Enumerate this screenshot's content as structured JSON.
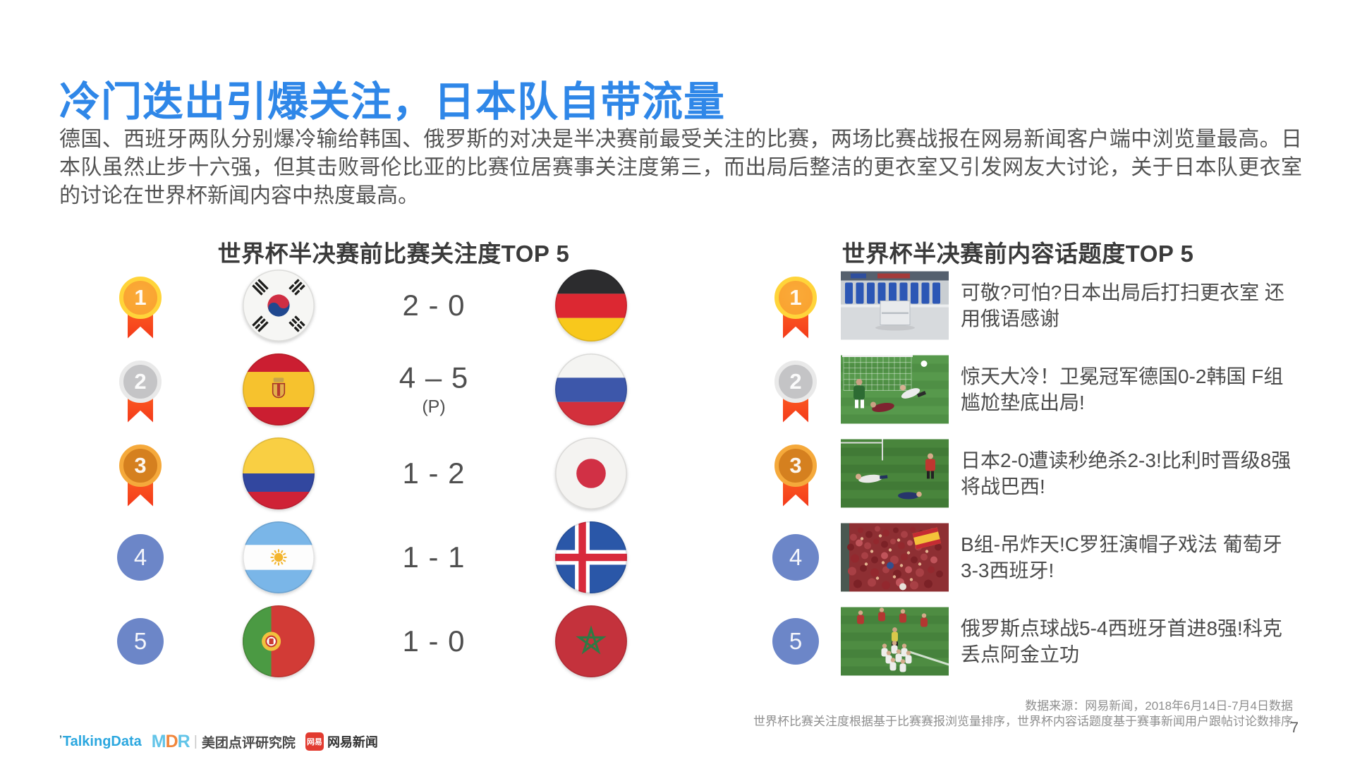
{
  "title": "冷门迭出引爆关注，日本队自带流量",
  "intro": "德国、西班牙两队分别爆冷输给韩国、俄罗斯的对决是半决赛前最受关注的比赛，两场比赛战报在网易新闻客户端中浏览量最高。日本队虽然止步十六强，但其击败哥伦比亚的比赛位居赛事关注度第三，而出局后整洁的更衣室又引发网友大讨论，关于日本队更衣室的讨论在世界杯新闻内容中热度最高。",
  "left_section": {
    "title": "世界杯半决赛前比赛关注度TOP 5",
    "matches": [
      {
        "rank": 1,
        "home_team": "south-korea",
        "score": "2 - 0",
        "note": "",
        "away_team": "germany"
      },
      {
        "rank": 2,
        "home_team": "spain",
        "score": "4 – 5",
        "note": "(P)",
        "away_team": "russia"
      },
      {
        "rank": 3,
        "home_team": "colombia",
        "score": "1 - 2",
        "note": "",
        "away_team": "japan"
      },
      {
        "rank": 4,
        "home_team": "argentina",
        "score": "1 - 1",
        "note": "",
        "away_team": "iceland"
      },
      {
        "rank": 5,
        "home_team": "portugal",
        "score": "1 - 0",
        "note": "",
        "away_team": "morocco"
      }
    ]
  },
  "right_section": {
    "title": "世界杯半决赛前内容话题度TOP 5",
    "topics": [
      {
        "rank": 1,
        "thumb": "locker-room",
        "headline": "可敬?可怕?日本出局后打扫更衣室 还用俄语感谢"
      },
      {
        "rank": 2,
        "thumb": "goal-upset",
        "headline": "惊天大冷！卫冕冠军德国0-2韩国 F组尴尬垫底出局!"
      },
      {
        "rank": 3,
        "thumb": "last-second-goal",
        "headline": "日本2-0遭读秒绝杀2-3!比利时晋级8强将战巴西!"
      },
      {
        "rank": 4,
        "thumb": "red-crowd",
        "headline": "B组-吊炸天!C罗狂演帽子戏法 葡萄牙3-3西班牙!"
      },
      {
        "rank": 5,
        "thumb": "penalty-win",
        "headline": "俄罗斯点球战5-4西班牙首进8强!科克丢点阿金立功"
      }
    ]
  },
  "footer": {
    "source_line1": "数据来源：网易新闻，2018年6月14日-7月4日数据",
    "source_line2": "世界杯比赛关注度根据基于比赛赛报浏览量排序，世界杯内容话题度基于赛事新闻用户跟帖讨论数排序",
    "page_number": "7"
  },
  "logos": {
    "talkingdata": "TalkingData",
    "talkingdata_tick": "’",
    "mdr_m": "M",
    "mdr_d": "D",
    "mdr_r": "R",
    "mdr_divider": "|",
    "mdr_name": "美团点评研究院",
    "netease_badge": "网易",
    "netease_name": "网易新闻"
  },
  "colors": {
    "title_blue": "#2F87E8",
    "body_text": "#535353",
    "heading_text": "#3A3A3A",
    "score_text": "#4F4F4F",
    "headline_text": "#4B4B4B",
    "source_text": "#8F8F8F",
    "medal_gold_ring": "#FFD43A",
    "medal_gold_fill": "#F9A12E",
    "medal_silver_ring": "#E9E9E9",
    "medal_silver_fill": "#C4C4C6",
    "medal_bronze_ring": "#F5A93B",
    "medal_bronze_fill": "#D5801F",
    "ribbon_red": "#F43A1B",
    "rank_badge_blue": "#6C86C8",
    "talkingdata_blue": "#2BA7DF",
    "netease_red": "#E23B30"
  }
}
